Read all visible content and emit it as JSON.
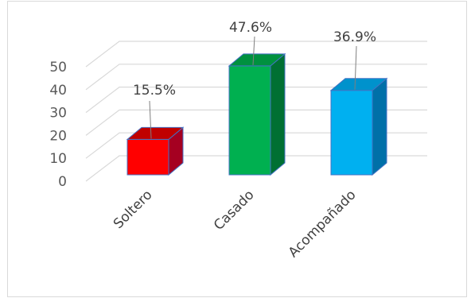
{
  "chart_data": {
    "type": "bar",
    "title": "",
    "xlabel": "",
    "ylabel": "",
    "categories": [
      "Soltero",
      "Casado",
      "Acompañado"
    ],
    "values": [
      15.5,
      47.6,
      36.9
    ],
    "data_labels": [
      "15.5%",
      "47.6%",
      "36.9%"
    ],
    "ylim": [
      0,
      50
    ],
    "yticks": [
      "0",
      "10",
      "20",
      "30",
      "40",
      "50"
    ],
    "grid": true,
    "legend": "none",
    "colors": {
      "front": [
        "#ff0000",
        "#00b050",
        "#00b0f0"
      ],
      "side": [
        "#a50021",
        "#007033",
        "#0070a8"
      ],
      "top": [
        "#c00000",
        "#00913f",
        "#0092cc"
      ],
      "edge": "#4472c4",
      "grid": "#d9d9d9",
      "leader": "#7f7f7f"
    }
  }
}
